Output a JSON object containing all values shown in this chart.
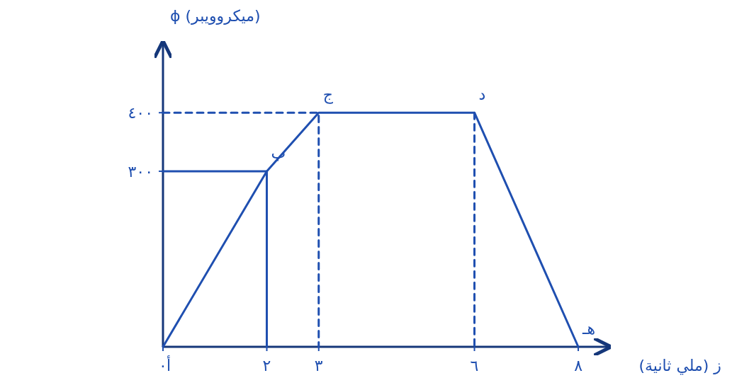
{
  "chart_data": {
    "type": "line",
    "xlabel": "ز (ملي ثانية)",
    "ylabel": "ϕ (ميكروويبر)",
    "x": [
      0,
      2,
      3,
      6,
      8
    ],
    "series": [
      {
        "color": "#1f4fb0",
        "values": [
          0,
          300,
          400,
          400,
          0
        ]
      },
      {
        "type": "line",
        "x": [
          0,
          3,
          3
        ],
        "values": [
          400,
          400,
          0
        ],
        "color": "#1f4fb0",
        "line_style": "dashed"
      },
      {
        "type": "line",
        "x": [
          6,
          6
        ],
        "values": [
          400,
          0
        ],
        "color": "#1f4fb0",
        "line_style": "dashed"
      },
      {
        "type": "line",
        "x": [
          0,
          2,
          2
        ],
        "values": [
          300,
          300,
          0
        ],
        "color": "#1f4fb0",
        "line_style": "solid"
      }
    ],
    "xlim": [
      0,
      8.6
    ],
    "ylim": [
      0,
      520
    ],
    "xticks": [
      {
        "value": 0,
        "label": "٠"
      },
      {
        "value": 2,
        "label": "٢"
      },
      {
        "value": 3,
        "label": "٣"
      },
      {
        "value": 6,
        "label": "٦"
      },
      {
        "value": 8,
        "label": "٨"
      }
    ],
    "yticks": [
      {
        "value": 300,
        "label": "٣٠٠"
      },
      {
        "value": 400,
        "label": "٤٠٠"
      }
    ],
    "annotations": [
      {
        "text": "أ",
        "x": 0,
        "y": 0
      },
      {
        "text": "ب",
        "x": 2,
        "y": 300
      },
      {
        "text": "ج",
        "x": 3,
        "y": 400
      },
      {
        "text": "د",
        "x": 6,
        "y": 400
      },
      {
        "text": "هـ",
        "x": 8,
        "y": 0
      }
    ],
    "grid": false,
    "marker": "none",
    "line_style": "solid"
  }
}
